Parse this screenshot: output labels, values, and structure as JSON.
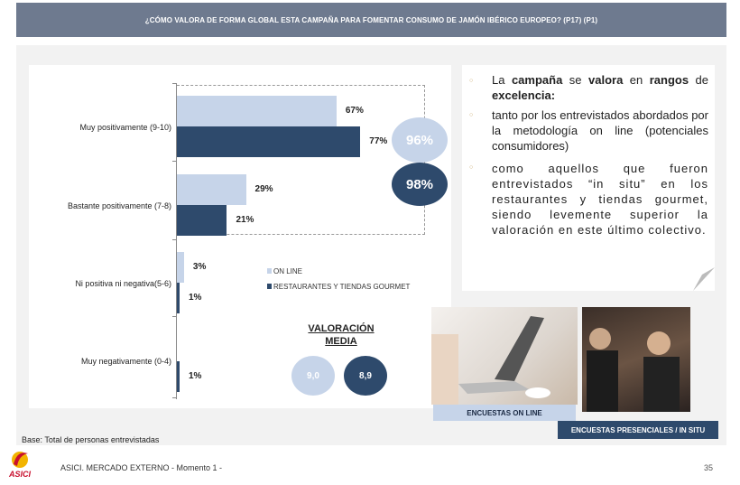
{
  "header": {
    "title": "¿CÓMO VALORA DE FORMA GLOBAL ESTA CAMPAÑA PARA FOMENTAR CONSUMO DE JAMÓN IBÉRICO EUROPEO? (P17) (P1)"
  },
  "chart_data": {
    "type": "bar",
    "orientation": "horizontal",
    "categories": [
      "Muy positivamente (9-10)",
      "Bastante positivamente (7-8)",
      "Ni positiva ni negativa(5-6)",
      "Muy negativamente (0-4)"
    ],
    "series": [
      {
        "name": "ON LINE",
        "color": "#c6d4e9",
        "values": [
          67,
          29,
          3,
          0
        ],
        "labels": [
          "67%",
          "29%",
          "3%",
          ""
        ]
      },
      {
        "name": "RESTAURANTES Y TIENDAS GOURMET",
        "color": "#2e4a6c",
        "values": [
          77,
          21,
          1,
          1
        ],
        "labels": [
          "77%",
          "21%",
          "1%",
          "1%"
        ]
      }
    ],
    "xlim": [
      0,
      100
    ],
    "unit": "%",
    "annotations": {
      "online_total": "96%",
      "gourmet_total": "98%"
    },
    "mean": {
      "title_line1": "VALORACIÓN",
      "title_line2": "MEDIA",
      "online": "9,0",
      "gourmet": "8,9"
    }
  },
  "text": {
    "b1": [
      "La ",
      "campaña",
      " se ",
      "valora",
      " en ",
      "rangos",
      " de ",
      "excelencia:"
    ],
    "b2": "tanto por los entrevistados abordados por la metodología on line (potenciales consumidores)",
    "b3": "como aquellos que fueron entrevistados “in situ” en los restaurantes y tiendas gourmet, siendo levemente superior la valoración en este último colectivo.",
    "bullet": "○"
  },
  "photos": {
    "online_label": "ENCUESTAS ON LINE",
    "insitu_label": "ENCUESTAS PRESENCIALES / IN SITU"
  },
  "footer": {
    "base": "Base: Total de personas entrevistadas",
    "logo": "ASICI",
    "source": "ASICI. MERCADO EXTERNO - Momento 1 -",
    "page": "35"
  }
}
